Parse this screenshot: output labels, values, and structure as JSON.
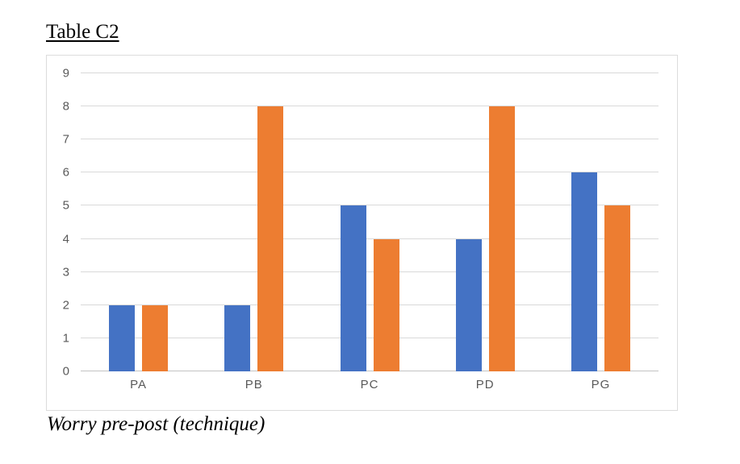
{
  "page": {
    "title": "Table C2",
    "caption": "Worry pre-post (technique)"
  },
  "chart_data": {
    "type": "bar",
    "title": "Table C2",
    "caption": "Worry pre-post (technique)",
    "categories": [
      "PA",
      "PB",
      "PC",
      "PD",
      "PG"
    ],
    "series": [
      {
        "name": "blue",
        "color": "#4472C4",
        "values": [
          2,
          2,
          5,
          4,
          6
        ]
      },
      {
        "name": "orange",
        "color": "#ED7D31",
        "values": [
          2,
          8,
          4,
          8,
          5
        ]
      }
    ],
    "xlabel": "",
    "ylabel": "",
    "ylim": [
      0,
      9
    ],
    "y_ticks": [
      0,
      1,
      2,
      3,
      4,
      5,
      6,
      7,
      8,
      9
    ],
    "grid": true,
    "legend": false,
    "colors": {
      "gridline": "#D9D9D9",
      "axis_line": "#C3C3C3",
      "tick_label": "#595959",
      "frame_border": "#DCDCDC",
      "background": "#FFFFFF"
    }
  }
}
